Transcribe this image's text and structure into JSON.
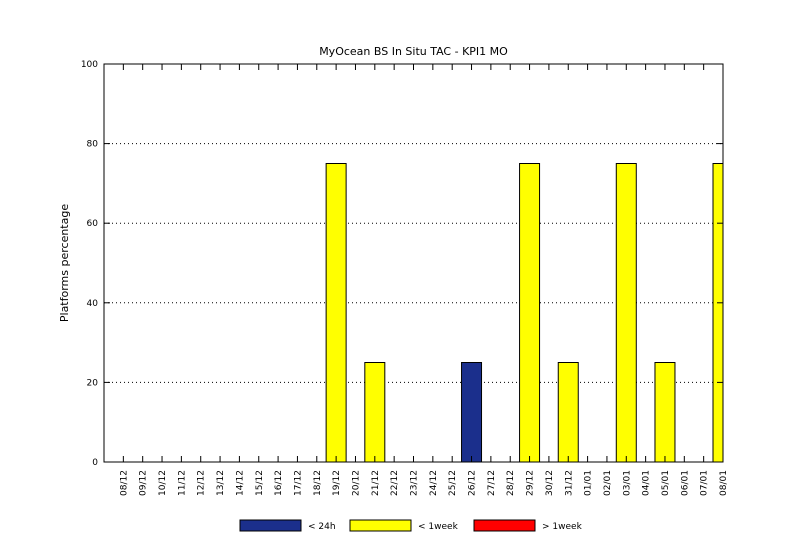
{
  "chart_data": {
    "type": "bar",
    "title": "MyOcean  BS In Situ TAC - KPI1  MO",
    "xlabel": "",
    "ylabel": "Platforms percentage",
    "ylim": [
      0,
      100
    ],
    "yticks": [
      0,
      20,
      40,
      60,
      80,
      100
    ],
    "grid": "horizontal-dotted",
    "legend_position": "bottom",
    "categories": [
      "08/12",
      "09/12",
      "10/12",
      "11/12",
      "12/12",
      "13/12",
      "14/12",
      "15/12",
      "16/12",
      "17/12",
      "18/12",
      "19/12",
      "20/12",
      "21/12",
      "22/12",
      "23/12",
      "24/12",
      "25/12",
      "26/12",
      "27/12",
      "28/12",
      "29/12",
      "30/12",
      "31/12",
      "01/01",
      "02/01",
      "03/01",
      "04/01",
      "05/01",
      "06/01",
      "07/01",
      "08/01"
    ],
    "series": [
      {
        "name": "< 24h",
        "color": "#1b2f8c",
        "values": [
          0,
          0,
          0,
          0,
          0,
          0,
          0,
          0,
          0,
          0,
          0,
          0,
          0,
          0,
          0,
          0,
          0,
          0,
          25,
          0,
          0,
          0,
          0,
          0,
          0,
          0,
          0,
          0,
          0,
          0,
          0,
          0
        ]
      },
      {
        "name": "< 1week",
        "color": "#ffff00",
        "values": [
          0,
          0,
          0,
          0,
          0,
          0,
          0,
          0,
          0,
          0,
          0,
          75,
          0,
          25,
          0,
          0,
          0,
          0,
          0,
          0,
          0,
          75,
          0,
          25,
          0,
          0,
          75,
          0,
          25,
          0,
          0,
          75
        ]
      },
      {
        "name": "> 1week",
        "color": "#ff0000",
        "values": [
          0,
          0,
          0,
          0,
          0,
          0,
          0,
          0,
          0,
          0,
          0,
          0,
          0,
          0,
          0,
          0,
          0,
          0,
          0,
          0,
          0,
          0,
          0,
          0,
          0,
          0,
          0,
          0,
          0,
          0,
          0,
          0
        ]
      }
    ]
  }
}
